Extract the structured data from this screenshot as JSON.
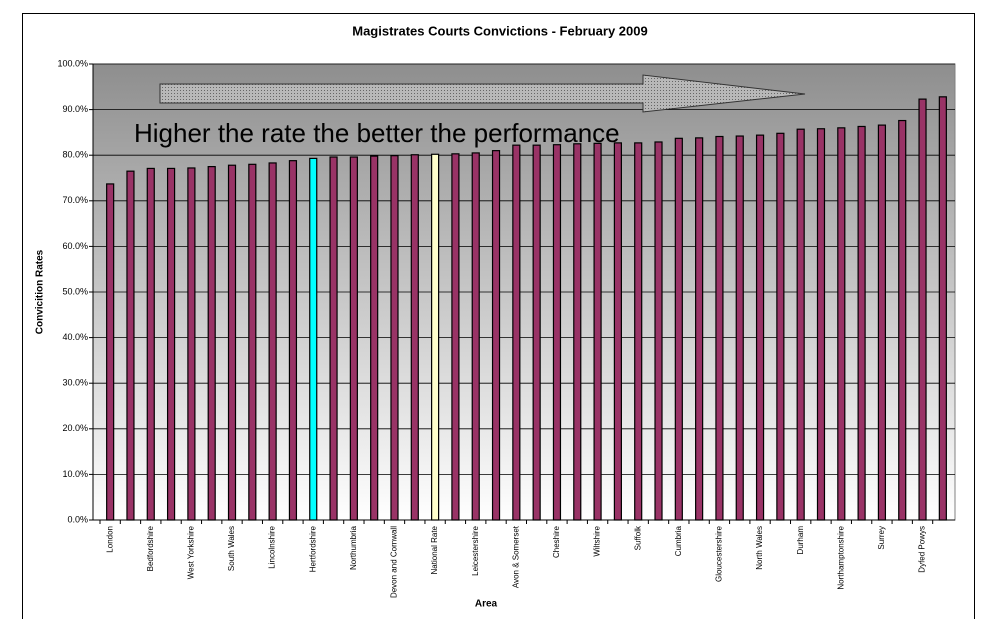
{
  "chart_data": {
    "type": "bar",
    "title": "Magistrates Courts Convictions - February 2009",
    "ylabel": "Convicition Rates",
    "xlabel": "Area",
    "annotation": "Higher the rate the better the performance",
    "categories": [
      "London",
      null,
      "Bedfordshire",
      null,
      "West Yorkshire",
      null,
      "South Wales",
      null,
      "Lincolnshire",
      null,
      "Hertfordshire",
      null,
      "Northumbria",
      null,
      "Devon and Cornwall",
      null,
      "National Rate",
      null,
      "Leicestershire",
      null,
      "Avon & Somerset",
      null,
      "Cheshire",
      null,
      "Wiltshire",
      null,
      "Suffolk",
      null,
      "Cumbria",
      null,
      "Gloucestershire",
      null,
      "North Wales",
      null,
      "Durham",
      null,
      "Northamptonshire",
      null,
      "Surrey",
      null,
      "Dyfed Powys",
      null
    ],
    "values": [
      73.7,
      76.5,
      77.1,
      77.1,
      77.2,
      77.5,
      77.8,
      78.0,
      78.3,
      78.8,
      79.3,
      79.6,
      79.6,
      79.8,
      79.9,
      80.1,
      80.2,
      80.3,
      80.5,
      81.0,
      82.2,
      82.2,
      82.3,
      82.5,
      82.6,
      82.7,
      82.7,
      82.9,
      83.7,
      83.8,
      84.1,
      84.2,
      84.4,
      84.8,
      85.7,
      85.8,
      86.0,
      86.3,
      86.6,
      87.6,
      92.3,
      92.8
    ],
    "color": "#993366",
    "highlight_colors": {
      "10": "#00ffff",
      "16": "#ffffcc"
    },
    "ylim": [
      0,
      100
    ],
    "yticks": [
      {
        "value": 0,
        "label": "0.0%"
      },
      {
        "value": 10,
        "label": "10.0%"
      },
      {
        "value": 20,
        "label": "20.0%"
      },
      {
        "value": 30,
        "label": "30.0%"
      },
      {
        "value": 40,
        "label": "40.0%"
      },
      {
        "value": 50,
        "label": "50.0%"
      },
      {
        "value": 60,
        "label": "60.0%"
      },
      {
        "value": 70,
        "label": "70.0%"
      },
      {
        "value": 80,
        "label": "80.0%"
      },
      {
        "value": 90,
        "label": "90.0%"
      },
      {
        "value": 100,
        "label": "100.0%"
      }
    ],
    "grid": true
  }
}
